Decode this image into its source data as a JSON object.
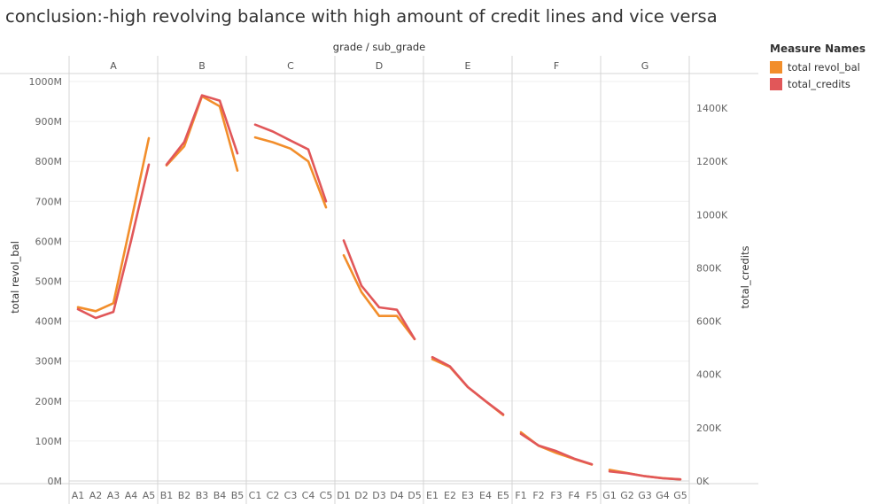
{
  "chart_data": {
    "type": "line",
    "title": "conclusion:-high revolving balance with high amount of credit lines and vice versa",
    "header_label": "grade / sub_grade",
    "ylabel_left": "total revol_bal",
    "ylabel_right": "total_credits",
    "ylim_left": [
      0,
      1000000000
    ],
    "ylim_right": [
      0,
      1500000
    ],
    "yticks_left": [
      {
        "v": 0,
        "label": "0M"
      },
      {
        "v": 100000000,
        "label": "100M"
      },
      {
        "v": 200000000,
        "label": "200M"
      },
      {
        "v": 300000000,
        "label": "300M"
      },
      {
        "v": 400000000,
        "label": "400M"
      },
      {
        "v": 500000000,
        "label": "500M"
      },
      {
        "v": 600000000,
        "label": "600M"
      },
      {
        "v": 700000000,
        "label": "700M"
      },
      {
        "v": 800000000,
        "label": "800M"
      },
      {
        "v": 900000000,
        "label": "900M"
      },
      {
        "v": 1000000000,
        "label": "1000M"
      }
    ],
    "yticks_right": [
      {
        "v": 0,
        "label": "0K"
      },
      {
        "v": 200000,
        "label": "200K"
      },
      {
        "v": 400000,
        "label": "400K"
      },
      {
        "v": 600000,
        "label": "600K"
      },
      {
        "v": 800000,
        "label": "800K"
      },
      {
        "v": 1000000,
        "label": "1000K"
      },
      {
        "v": 1200000,
        "label": "1200K"
      },
      {
        "v": 1400000,
        "label": "1400K"
      }
    ],
    "grades": [
      {
        "name": "A",
        "sub_grades": [
          "A1",
          "A2",
          "A3",
          "A4",
          "A5"
        ]
      },
      {
        "name": "B",
        "sub_grades": [
          "B1",
          "B2",
          "B3",
          "B4",
          "B5"
        ]
      },
      {
        "name": "C",
        "sub_grades": [
          "C1",
          "C2",
          "C3",
          "C4",
          "C5"
        ]
      },
      {
        "name": "D",
        "sub_grades": [
          "D1",
          "D2",
          "D3",
          "D4",
          "D5"
        ]
      },
      {
        "name": "E",
        "sub_grades": [
          "E1",
          "E2",
          "E3",
          "E4",
          "E5"
        ]
      },
      {
        "name": "F",
        "sub_grades": [
          "F1",
          "F2",
          "F3",
          "F4",
          "F5"
        ]
      },
      {
        "name": "G",
        "sub_grades": [
          "G1",
          "G2",
          "G3",
          "G4",
          "G5"
        ]
      }
    ],
    "legend_title": "Measure Names",
    "legend_position": "top-right",
    "grid": true,
    "series": [
      {
        "name": "total revol_bal",
        "axis": "left",
        "color": "#f28e2b",
        "values": [
          [
            435000000,
            425000000,
            445000000,
            650000000,
            858000000
          ],
          [
            790000000,
            838000000,
            963000000,
            938000000,
            777000000
          ],
          [
            860000000,
            848000000,
            832000000,
            800000000,
            685000000
          ],
          [
            565000000,
            473000000,
            413000000,
            413000000,
            355000000
          ],
          [
            305000000,
            285000000,
            235000000,
            200000000,
            165000000
          ],
          [
            122000000,
            88000000,
            70000000,
            55000000,
            41000000
          ],
          [
            28000000,
            20000000,
            12000000,
            7000000,
            4000000
          ]
        ]
      },
      {
        "name": "total_credits",
        "axis": "right",
        "color": "#e15759",
        "values": [
          [
            645000,
            612000,
            635000,
            903000,
            1188000
          ],
          [
            1188000,
            1273000,
            1448000,
            1428000,
            1230000
          ],
          [
            1338000,
            1312000,
            1278000,
            1245000,
            1050000
          ],
          [
            903000,
            733000,
            652000,
            643000,
            533000
          ],
          [
            465000,
            430000,
            353000,
            300000,
            250000
          ],
          [
            177000,
            133000,
            112000,
            84000,
            63000
          ],
          [
            36000,
            29000,
            18000,
            10000,
            6000
          ]
        ]
      }
    ]
  }
}
